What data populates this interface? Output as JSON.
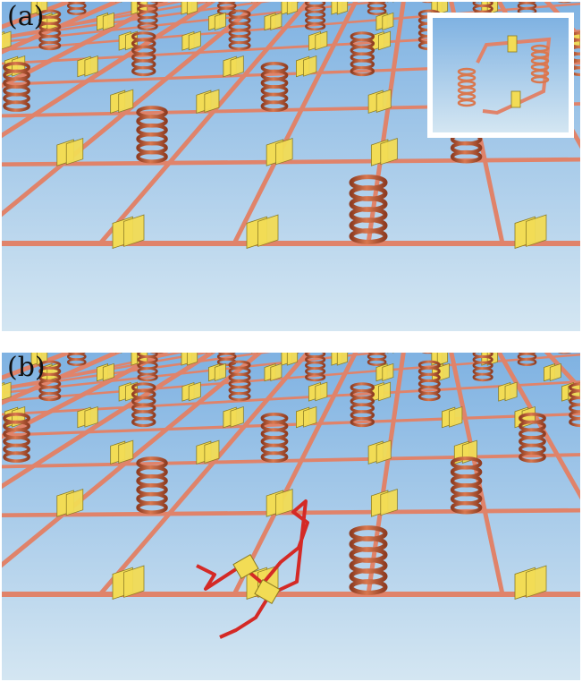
{
  "figure": {
    "panels": [
      {
        "id": "a",
        "label": "(a)",
        "has_inset": true,
        "has_highlighted_path": false
      },
      {
        "id": "b",
        "label": "(b)",
        "has_inset": false,
        "has_highlighted_path": true
      }
    ]
  },
  "colors": {
    "sky_top": "#7fb2e2",
    "sky_bottom": "#d4e6f2",
    "rod": "#e0836a",
    "rod_dark": "#b9583f",
    "coil": "#d9784f",
    "coil_dark": "#8f3d22",
    "capacitor": "#f2dc55",
    "capacitor_dark": "#8a7a22",
    "highlight_path": "#d42a26"
  }
}
